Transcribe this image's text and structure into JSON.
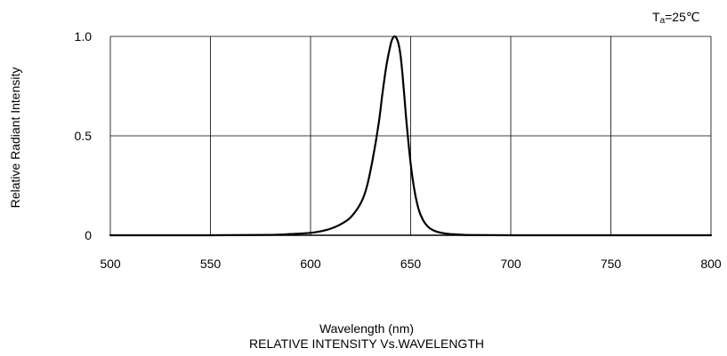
{
  "chart_data": {
    "type": "line",
    "title": "RELATIVE INTENSITY Vs.WAVELENGTH",
    "xlabel": "Wavelength (nm)",
    "ylabel": "Relative Radiant Intensity",
    "annotation": {
      "main": "T",
      "subscript": "a",
      "suffix": "=25℃"
    },
    "xlim": [
      500,
      800
    ],
    "ylim": [
      0,
      1.0
    ],
    "x_ticks": [
      500,
      550,
      600,
      650,
      700,
      750,
      800
    ],
    "x_tick_labels": [
      "500",
      "550",
      "600",
      "650",
      "700",
      "750",
      "800"
    ],
    "y_ticks": [
      0,
      0.5,
      1.0
    ],
    "y_tick_labels": [
      "0",
      "0.5",
      "1.0"
    ],
    "grid": true,
    "colors": {
      "line": "#000000",
      "grid": "#000000"
    },
    "series": [
      {
        "x": [
          500,
          550,
          580,
          590,
          600,
          605,
          610,
          615,
          620,
          625,
          628,
          631,
          634,
          636,
          638,
          640,
          641,
          642,
          643,
          644,
          645,
          646,
          647,
          648,
          650,
          652,
          654,
          656,
          658,
          660,
          663,
          666,
          670,
          675,
          680,
          700,
          750,
          800
        ],
        "y": [
          0,
          0,
          0.002,
          0.006,
          0.012,
          0.02,
          0.033,
          0.055,
          0.09,
          0.16,
          0.24,
          0.38,
          0.56,
          0.72,
          0.86,
          0.96,
          0.99,
          1.0,
          0.99,
          0.96,
          0.9,
          0.8,
          0.68,
          0.56,
          0.36,
          0.22,
          0.13,
          0.08,
          0.05,
          0.032,
          0.018,
          0.011,
          0.006,
          0.003,
          0.001,
          0,
          0,
          0
        ]
      }
    ]
  }
}
